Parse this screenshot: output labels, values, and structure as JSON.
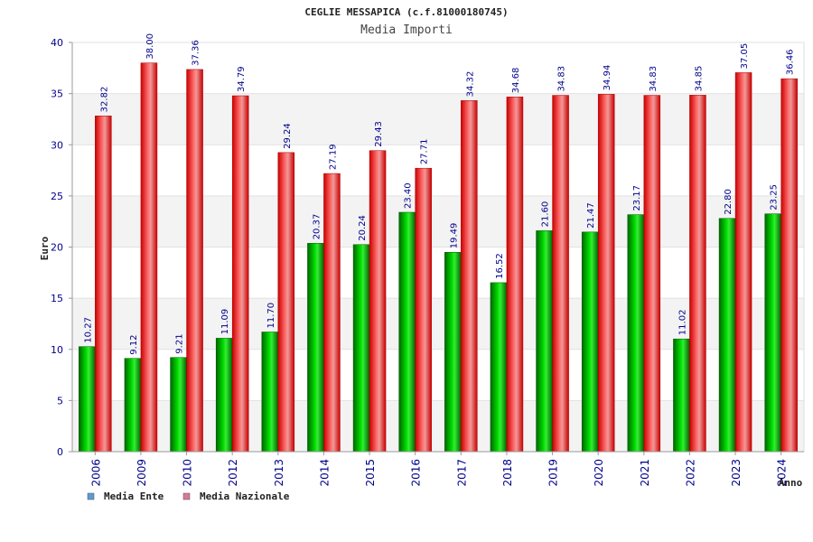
{
  "chart_data": {
    "type": "bar",
    "title": "CEGLIE MESSAPICA (c.f.81000180745)",
    "subtitle": "Media Importi",
    "xlabel": "Anno",
    "ylabel": "Euro",
    "ylim": [
      0,
      40
    ],
    "yticks": [
      0,
      5,
      10,
      15,
      20,
      25,
      30,
      35,
      40
    ],
    "grid": true,
    "legend_position": "bottom-left",
    "categories": [
      "2006",
      "2009",
      "2010",
      "2012",
      "2013",
      "2014",
      "2015",
      "2016",
      "2017",
      "2018",
      "2019",
      "2020",
      "2021",
      "2022",
      "2023",
      "2024"
    ],
    "series": [
      {
        "name": "Media Ente",
        "color": "#00aa00",
        "legend_color": "#5b9bd5",
        "values": [
          10.27,
          9.12,
          9.21,
          11.09,
          11.7,
          20.37,
          20.24,
          23.4,
          19.49,
          16.52,
          21.6,
          21.47,
          23.17,
          11.02,
          22.8,
          23.25
        ],
        "labels": [
          "10.27",
          "9.12",
          "9.21",
          "11.09",
          "11.70",
          "20.37",
          "20.24",
          "23.40",
          "19.49",
          "16.52",
          "21.60",
          "21.47",
          "23.17",
          "11.02",
          "22.80",
          "23.25"
        ]
      },
      {
        "name": "Media Nazionale",
        "color": "#ee0000",
        "legend_color": "#d9789f",
        "values": [
          32.82,
          38.0,
          37.36,
          34.79,
          29.24,
          27.19,
          29.43,
          27.71,
          34.32,
          34.68,
          34.83,
          34.94,
          34.83,
          34.85,
          37.05,
          36.46
        ],
        "labels": [
          "32.82",
          "38.00",
          "37.36",
          "34.79",
          "29.24",
          "27.19",
          "29.43",
          "27.71",
          "34.32",
          "34.68",
          "34.83",
          "34.94",
          "34.83",
          "34.85",
          "37.05",
          "36.46"
        ]
      }
    ]
  }
}
